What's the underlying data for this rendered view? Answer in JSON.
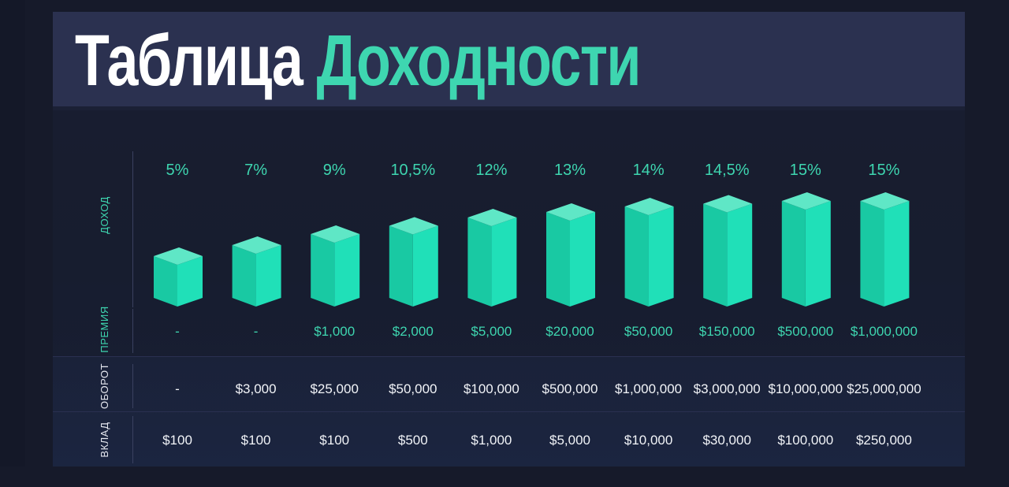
{
  "title": {
    "part1": "Таблица",
    "part2": "Доходности"
  },
  "row_labels": {
    "income": "ДОХОД",
    "bonus": "ПРЕМИЯ",
    "turnover": "ОБОРОТ",
    "deposit": "ВКЛАД"
  },
  "colors": {
    "accent": "#3ed6b0",
    "bar_front": "#20e0b8",
    "bar_side": "#19c9a3",
    "bar_top": "#5fe7c6",
    "background": "#161a2a",
    "title_band": "#2b3150"
  },
  "chart_data": {
    "type": "bar",
    "title": "Таблица Доходности",
    "ylabel": "ДОХОД",
    "categories": [
      "$100",
      "$100",
      "$100",
      "$500",
      "$1,000",
      "$5,000",
      "$10,000",
      "$30,000",
      "$100,000",
      "$250,000"
    ],
    "values": [
      5,
      7,
      9,
      10.5,
      12,
      13,
      14,
      14.5,
      15,
      15
    ],
    "value_labels": [
      "5%",
      "7%",
      "9%",
      "10,5%",
      "12%",
      "13%",
      "14%",
      "14,5%",
      "15%",
      "15%"
    ],
    "bonus": [
      "-",
      "-",
      "$1,000",
      "$2,000",
      "$5,000",
      "$20,000",
      "$50,000",
      "$150,000",
      "$500,000",
      "$1,000,000"
    ],
    "turnover": [
      "-",
      "$3,000",
      "$25,000",
      "$50,000",
      "$100,000",
      "$500,000",
      "$1,000,000",
      "$3,000,000",
      "$10,000,000",
      "$25,000,000"
    ],
    "deposit": [
      "$100",
      "$100",
      "$100",
      "$500",
      "$1,000",
      "$5,000",
      "$10,000",
      "$30,000",
      "$100,000",
      "$250,000"
    ],
    "ylim": [
      0,
      15
    ],
    "grid": false,
    "legend": "none"
  }
}
